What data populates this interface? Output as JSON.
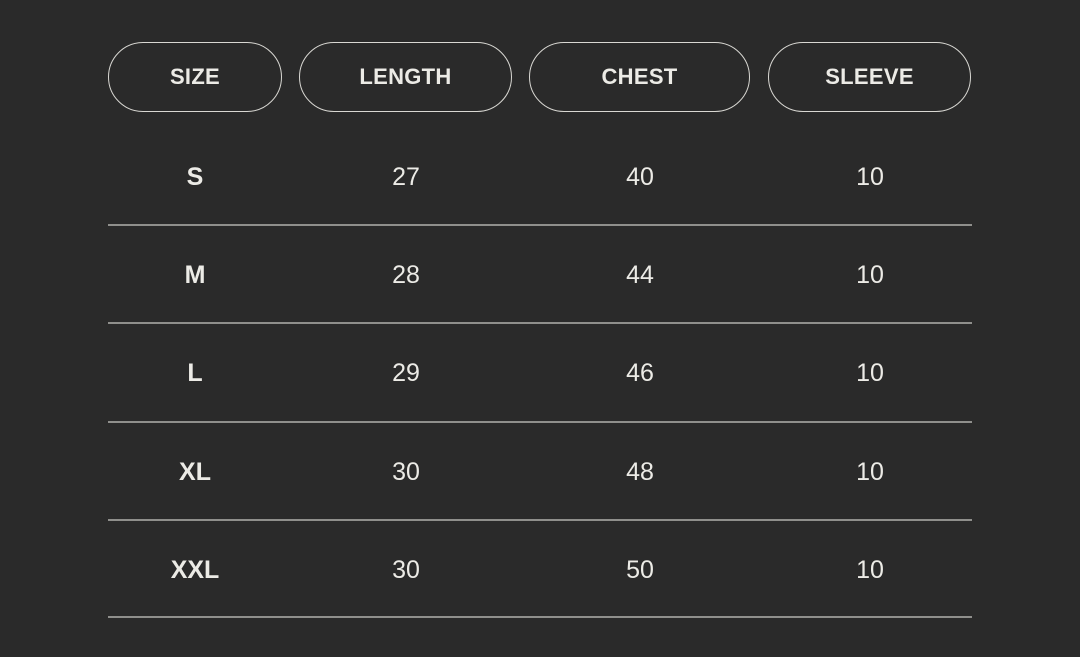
{
  "headers": [
    "SIZE",
    "LENGTH",
    "CHEST",
    "SLEEVE"
  ],
  "rows": [
    {
      "size": "S",
      "length": "27",
      "chest": "40",
      "sleeve": "10"
    },
    {
      "size": "M",
      "length": "28",
      "chest": "44",
      "sleeve": "10"
    },
    {
      "size": "L",
      "length": "29",
      "chest": "46",
      "sleeve": "10"
    },
    {
      "size": "XL",
      "length": "30",
      "chest": "48",
      "sleeve": "10"
    },
    {
      "size": "XXL",
      "length": "30",
      "chest": "50",
      "sleeve": "10"
    }
  ],
  "colors": {
    "background": "#2a2a2a",
    "text": "#ecebe6",
    "divider": "#8f8f8c"
  }
}
